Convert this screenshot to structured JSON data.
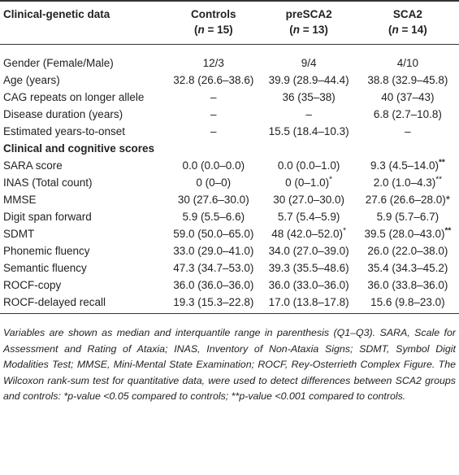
{
  "table": {
    "header": [
      {
        "label": "Clinical-genetic data"
      },
      {
        "label": "Controls",
        "sub": [
          "(",
          "n",
          " = 15)"
        ]
      },
      {
        "label": "preSCA2",
        "sub": [
          "(",
          "n",
          " = 13)"
        ]
      },
      {
        "label": "SCA2",
        "sub": [
          "(",
          "n",
          " = 14)"
        ]
      }
    ],
    "rows": [
      [
        "Gender (Female/Male)",
        "12/3",
        "9/4",
        "4/10"
      ],
      [
        "Age (years)",
        "32.8 (26.6–38.6)",
        "39.9 (28.9–44.4)",
        "38.8 (32.9–45.8)"
      ],
      [
        "CAG repeats on longer allele",
        "–",
        "36 (35–38)",
        "40 (37–43)"
      ],
      [
        "Disease duration (years)",
        "–",
        "–",
        "6.8 (2.7–10.8)"
      ],
      [
        "Estimated years-to-onset",
        "–",
        "15.5 (18.4–10.3)",
        "–"
      ]
    ],
    "section": "Clinical and cognitive scores",
    "rows2": [
      [
        "SARA score",
        "0.0 (0.0–0.0)",
        "0.0 (0.0–1.0)",
        {
          "text": "9.3 (4.5–14.0)",
          "sup": "**",
          "bold": true
        }
      ],
      [
        "INAS (Total count)",
        "0 (0–0)",
        {
          "text": "0 (0–1.0)",
          "sup": "*"
        },
        {
          "text": "2.0 (1.0–4.3)",
          "sup": "**"
        }
      ],
      [
        "MMSE",
        "30 (27.6–30.0)",
        "30 (27.0–30.0)",
        "27.6 (26.6–28.0)*"
      ],
      [
        "Digit span forward",
        "5.9 (5.5–6.6)",
        "5.7 (5.4–5.9)",
        "5.9 (5.7–6.7)"
      ],
      [
        "SDMT",
        "59.0 (50.0–65.0)",
        {
          "text": "48 (42.0–52.0)",
          "sup": "*"
        },
        {
          "text": "39.5 (28.0–43.0)",
          "sup": "**",
          "bold": true
        }
      ],
      [
        "Phonemic fluency",
        "33.0 (29.0–41.0)",
        "34.0 (27.0–39.0)",
        "26.0 (22.0–38.0)"
      ],
      [
        "Semantic fluency",
        "47.3 (34.7–53.0)",
        "39.3 (35.5–48.6)",
        "35.4 (34.3–45.2)"
      ],
      [
        "ROCF-copy",
        "36.0 (36.0–36.0)",
        "36.0 (33.0–36.0)",
        "36.0 (33.8–36.0)"
      ],
      [
        "ROCF-delayed recall",
        "19.3 (15.3–22.8)",
        "17.0 (13.8–17.8)",
        "15.6 (9.8–23.0)"
      ]
    ]
  },
  "footnote": "Variables are shown as median and interquantile range in parenthesis (Q1–Q3). SARA, Scale for Assessment and Rating of Ataxia; INAS, Inventory of Non-Ataxia Signs; SDMT, Symbol Digit Modalities Test; MMSE, Mini-Mental State Examination; ROCF, Rey-Osterrieth Complex Figure. The Wilcoxon rank-sum test for quantitative data, were used to detect differences between SCA2 groups and controls: *p-value <0.05 compared to controls; **p-value <0.001 compared to controls."
}
